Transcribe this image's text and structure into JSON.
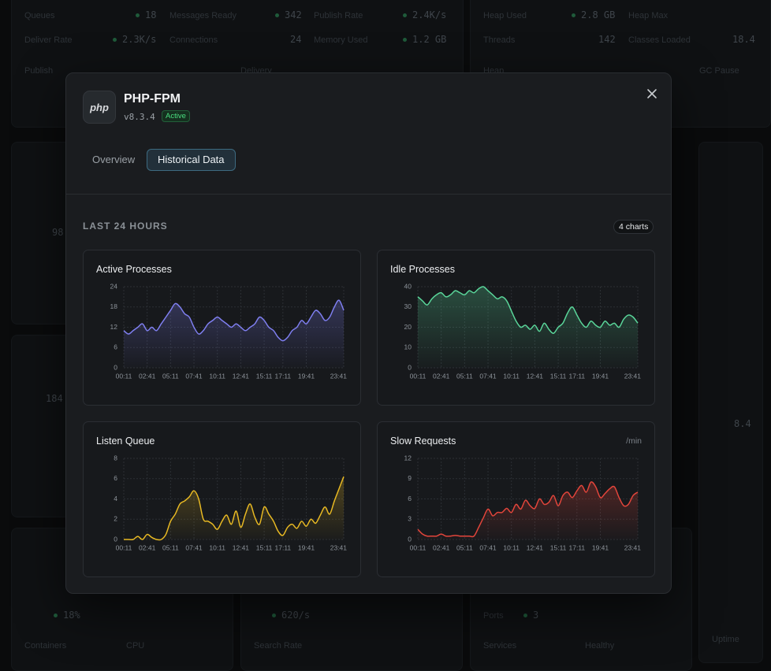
{
  "background": {
    "texts": [
      "Queues",
      "18",
      "Messages Ready",
      "342",
      "Publish Rate",
      "2.4K/s",
      "Deliver Rate",
      "2.3K/s",
      "Connections",
      "24",
      "Memory Used",
      "1.2 GB",
      "Heap Used",
      "2.8 GB",
      "Heap Max",
      "Threads",
      "142",
      "Classes Loaded",
      "18.4",
      "Publish",
      "Delivery",
      "Heap",
      "GC Pause",
      "98",
      "184",
      "8.4",
      "18%",
      "620/s",
      "Ports",
      "3",
      "Containers",
      "CPU",
      "Search Rate",
      "Services",
      "Healthy",
      "Uptime"
    ]
  },
  "header": {
    "icon": "php",
    "title": "PHP-FPM",
    "version": "v8.3.4",
    "status": "Active"
  },
  "tabs": [
    "Overview",
    "Historical Data"
  ],
  "section": {
    "title": "LAST 24 HOURS",
    "count": "4 charts"
  },
  "chart_data": [
    {
      "type": "line",
      "title": "Active Processes",
      "color": "#7f7ff0",
      "categories": [
        "00:11",
        null,
        null,
        null,
        null,
        "02:41",
        null,
        null,
        null,
        null,
        "05:11",
        null,
        null,
        null,
        null,
        "07:41",
        null,
        null,
        null,
        null,
        "10:11",
        null,
        null,
        null,
        null,
        "12:41",
        null,
        null,
        null,
        null,
        "15:11",
        null,
        null,
        null,
        "17:11",
        null,
        null,
        null,
        null,
        "19:41",
        null,
        null,
        null,
        null,
        null,
        null,
        null,
        "23:41"
      ],
      "values": [
        11,
        10,
        11,
        12,
        13,
        11,
        12,
        11,
        13,
        15,
        17,
        19,
        18,
        16,
        15,
        12,
        10,
        11,
        13,
        14,
        15,
        14,
        13,
        12,
        13,
        12,
        11,
        12,
        13,
        15,
        14,
        12,
        11,
        9,
        8,
        9,
        11,
        12,
        14,
        13,
        15,
        17,
        16,
        14,
        15,
        18,
        20,
        17
      ],
      "ylim": [
        0,
        24
      ],
      "yticks": [
        0,
        6,
        12,
        18,
        24
      ],
      "grid": true
    },
    {
      "type": "line",
      "title": "Idle Processes",
      "color": "#5ad69a",
      "categories": [
        "00:11",
        null,
        null,
        null,
        null,
        "02:41",
        null,
        null,
        null,
        null,
        "05:11",
        null,
        null,
        null,
        null,
        "07:41",
        null,
        null,
        null,
        null,
        "10:11",
        null,
        null,
        null,
        null,
        "12:41",
        null,
        null,
        null,
        null,
        "15:11",
        null,
        null,
        null,
        "17:11",
        null,
        null,
        null,
        null,
        "19:41",
        null,
        null,
        null,
        null,
        null,
        null,
        null,
        "23:41"
      ],
      "values": [
        35,
        33,
        31,
        34,
        36,
        37,
        35,
        36,
        38,
        37,
        36,
        38,
        37,
        39,
        40,
        38,
        36,
        34,
        35,
        33,
        28,
        23,
        20,
        21,
        19,
        21,
        18,
        22,
        19,
        17,
        20,
        22,
        27,
        30,
        26,
        22,
        20,
        23,
        21,
        20,
        23,
        21,
        22,
        20,
        24,
        26,
        25,
        22
      ],
      "ylim": [
        0,
        40
      ],
      "yticks": [
        0,
        10,
        20,
        30,
        40
      ],
      "grid": true
    },
    {
      "type": "line",
      "title": "Listen Queue",
      "color": "#e8b923",
      "categories": [
        "00:11",
        null,
        null,
        null,
        null,
        "02:41",
        null,
        null,
        null,
        null,
        "05:11",
        null,
        null,
        null,
        null,
        "07:41",
        null,
        null,
        null,
        null,
        "10:11",
        null,
        null,
        null,
        null,
        "12:41",
        null,
        null,
        null,
        null,
        "15:11",
        null,
        null,
        null,
        "17:11",
        null,
        null,
        null,
        null,
        "19:41",
        null,
        null,
        null,
        null,
        null,
        null,
        null,
        "23:41"
      ],
      "values": [
        0,
        0,
        0,
        0.3,
        0,
        0.5,
        0.2,
        0,
        0,
        0.5,
        1.8,
        2.5,
        3.5,
        3.8,
        4.2,
        4.8,
        4,
        2,
        1.8,
        1.5,
        1,
        1.8,
        2.4,
        1.5,
        2.8,
        1.2,
        2.5,
        3.5,
        2.2,
        1.5,
        3.2,
        2.5,
        1.8,
        0.8,
        0.4,
        1.2,
        1.5,
        1.1,
        1.8,
        1.3,
        2,
        1.6,
        2.4,
        3.2,
        2.5,
        3.8,
        5,
        6.2
      ],
      "ylim": [
        0,
        8
      ],
      "yticks": [
        0,
        2,
        4,
        6,
        8
      ],
      "grid": true
    },
    {
      "type": "line",
      "title": "Slow Requests",
      "unit": "/min",
      "color": "#e2453b",
      "categories": [
        "00:11",
        null,
        null,
        null,
        null,
        "02:41",
        null,
        null,
        null,
        null,
        "05:11",
        null,
        null,
        null,
        null,
        "07:41",
        null,
        null,
        null,
        null,
        "10:11",
        null,
        null,
        null,
        null,
        "12:41",
        null,
        null,
        null,
        null,
        "15:11",
        null,
        null,
        null,
        "17:11",
        null,
        null,
        null,
        null,
        "19:41",
        null,
        null,
        null,
        null,
        null,
        null,
        null,
        "23:41"
      ],
      "values": [
        1.5,
        0.8,
        0.5,
        0.5,
        0.5,
        0.8,
        0.5,
        0.5,
        0.6,
        0.5,
        0.5,
        0.5,
        0.5,
        1.8,
        3.2,
        4.5,
        3.5,
        4,
        4,
        4.6,
        4,
        5.2,
        4.5,
        5.8,
        5,
        4.6,
        6,
        5.2,
        5.5,
        6.5,
        5,
        6.5,
        7,
        6.2,
        7.2,
        8,
        7,
        8.5,
        7.8,
        6.2,
        6.8,
        7.5,
        7.8,
        6.2,
        5,
        5.2,
        6.5,
        7
      ],
      "ylim": [
        0,
        12
      ],
      "yticks": [
        0,
        3,
        6,
        9,
        12
      ],
      "grid": true
    }
  ]
}
